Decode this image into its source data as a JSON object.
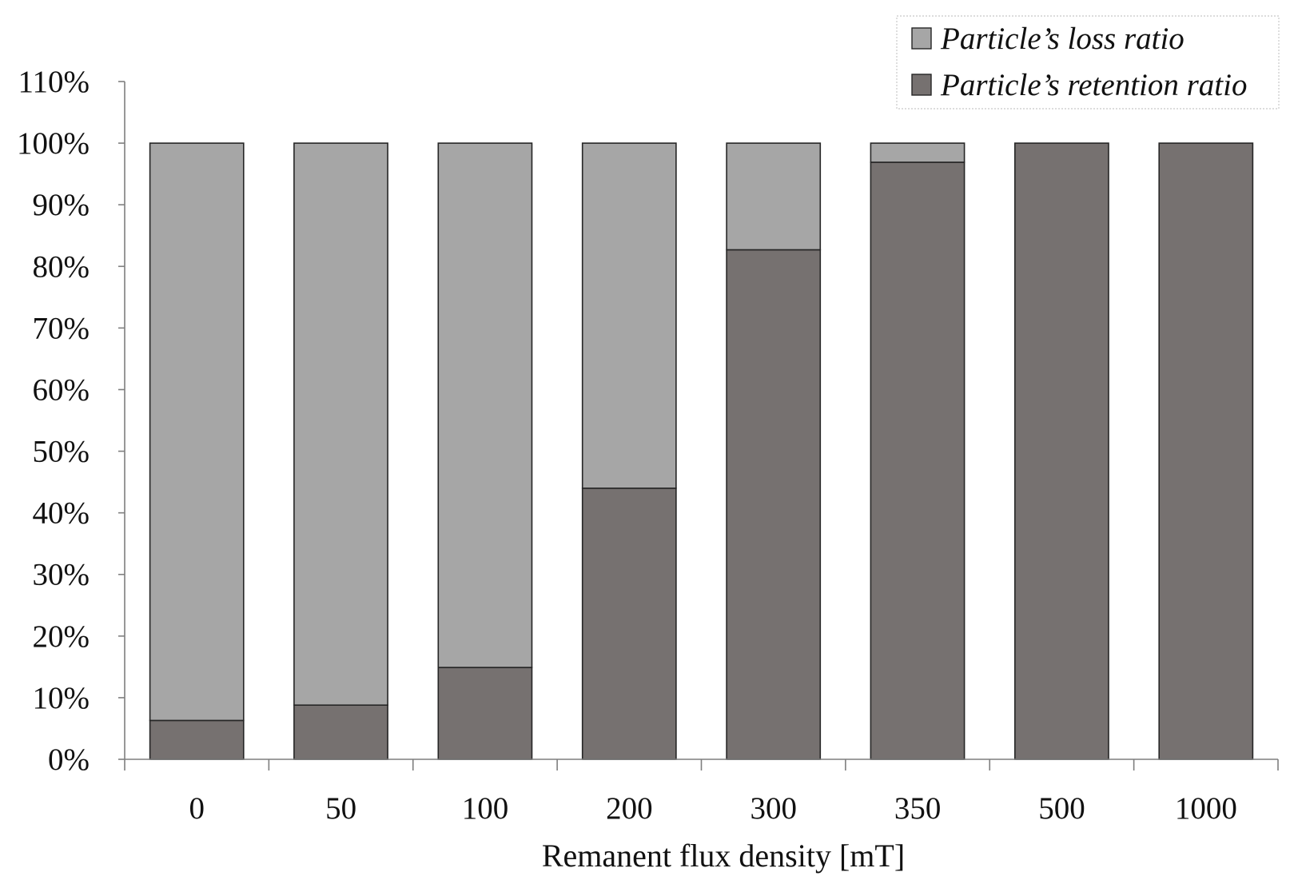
{
  "chart_data": {
    "type": "bar",
    "stacked": true,
    "categories": [
      "0",
      "50",
      "100",
      "200",
      "300",
      "350",
      "500",
      "1000"
    ],
    "series": [
      {
        "name": "Particle’s retention ratio",
        "color": "#767170",
        "values": [
          6.3,
          8.8,
          14.9,
          44.0,
          82.7,
          96.9,
          100,
          100
        ]
      },
      {
        "name": "Particle’s loss ratio",
        "color": "#a6a6a6",
        "values": [
          93.7,
          91.2,
          85.1,
          56.0,
          17.3,
          3.1,
          0,
          0
        ]
      }
    ],
    "legend_order": [
      1,
      0
    ],
    "xlabel": "Remanent flux density [mT]",
    "ylabel": "",
    "ylim": [
      0,
      110
    ],
    "yticks": [
      0,
      10,
      20,
      30,
      40,
      50,
      60,
      70,
      80,
      90,
      100,
      110
    ],
    "ytick_labels": [
      "0%",
      "10%",
      "20%",
      "30%",
      "40%",
      "50%",
      "60%",
      "70%",
      "80%",
      "90%",
      "100%",
      "110%"
    ],
    "grid": false,
    "legend_position": "top-right"
  }
}
